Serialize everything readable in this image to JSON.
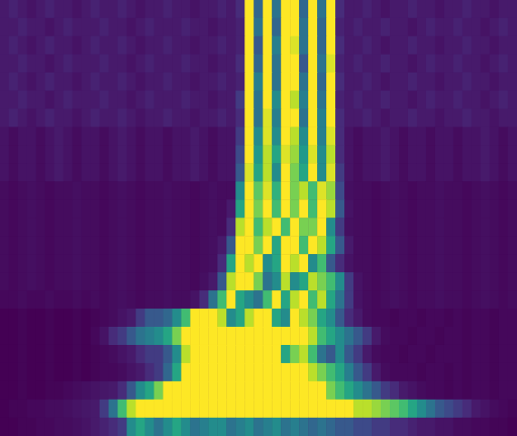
{
  "chart_data": {
    "type": "heatmap",
    "tick_labels": false,
    "z": [
      [
        0.1,
        0.12,
        0.1,
        0.08,
        0.1,
        0.12,
        0.1,
        0.1,
        0.08,
        0.1,
        0.12,
        0.1,
        0.1,
        0.12,
        0.1,
        0.08,
        0.1,
        0.1,
        0.12,
        0.1,
        0.1,
        0.08,
        0.1,
        0.1,
        0.12,
        0.1,
        0.15,
        1,
        0.35,
        1,
        0.4,
        1,
        1,
        0.35,
        1,
        0.4,
        1,
        0.15,
        0.1,
        0.1,
        0.12,
        0.1,
        0.08,
        0.1,
        0.1,
        0.12,
        0.1,
        0.1,
        0.08,
        0.1,
        0.1,
        0.12,
        0.1,
        0.1,
        0.08,
        0.1,
        0.1
      ],
      [
        0.1,
        0.1,
        0.12,
        0.1,
        0.1,
        0.08,
        0.1,
        0.12,
        0.1,
        0.1,
        0.1,
        0.12,
        0.1,
        0.1,
        0.08,
        0.1,
        0.12,
        0.1,
        0.1,
        0.1,
        0.12,
        0.1,
        0.1,
        0.08,
        0.1,
        0.1,
        0.12,
        1,
        0.4,
        1,
        0.35,
        1,
        1,
        0.4,
        1,
        0.35,
        1,
        0.12,
        0.1,
        0.12,
        0.1,
        0.1,
        0.12,
        0.1,
        0.1,
        0.08,
        0.1,
        0.12,
        0.1,
        0.1,
        0.12,
        0.1,
        0.1,
        0.08,
        0.1,
        0.12,
        0.1
      ],
      [
        0.1,
        0.12,
        0.1,
        0.08,
        0.1,
        0.12,
        0.1,
        0.1,
        0.08,
        0.1,
        0.12,
        0.1,
        0.1,
        0.12,
        0.1,
        0.08,
        0.1,
        0.1,
        0.12,
        0.1,
        0.1,
        0.08,
        0.1,
        0.1,
        0.12,
        0.1,
        0.12,
        1,
        0.3,
        1,
        0.45,
        1,
        0.95,
        0.4,
        1,
        0.35,
        1,
        0.15,
        0.1,
        0.1,
        0.12,
        0.1,
        0.08,
        0.1,
        0.1,
        0.12,
        0.1,
        0.1,
        0.08,
        0.1,
        0.1,
        0.12,
        0.1,
        0.1,
        0.08,
        0.1,
        0.1
      ],
      [
        0.1,
        0.1,
        0.12,
        0.1,
        0.1,
        0.08,
        0.1,
        0.12,
        0.1,
        0.1,
        0.1,
        0.12,
        0.1,
        0.1,
        0.08,
        0.1,
        0.12,
        0.1,
        0.1,
        0.1,
        0.12,
        0.1,
        0.1,
        0.08,
        0.1,
        0.1,
        0.15,
        1,
        0.35,
        1,
        0.4,
        1,
        1,
        0.3,
        1,
        0.4,
        0.95,
        0.12,
        0.1,
        0.12,
        0.1,
        0.1,
        0.12,
        0.1,
        0.1,
        0.08,
        0.1,
        0.12,
        0.1,
        0.1,
        0.12,
        0.1,
        0.1,
        0.08,
        0.1,
        0.12,
        0.1
      ],
      [
        0.1,
        0.12,
        0.1,
        0.08,
        0.1,
        0.12,
        0.1,
        0.1,
        0.08,
        0.1,
        0.12,
        0.1,
        0.1,
        0.12,
        0.1,
        0.08,
        0.1,
        0.1,
        0.12,
        0.1,
        0.1,
        0.08,
        0.1,
        0.1,
        0.12,
        0.1,
        0.12,
        1,
        0.45,
        1,
        0.4,
        1,
        1,
        0.4,
        1,
        0.35,
        1,
        0.15,
        0.1,
        0.1,
        0.12,
        0.1,
        0.08,
        0.1,
        0.1,
        0.12,
        0.1,
        0.1,
        0.08,
        0.1,
        0.1,
        0.12,
        0.1,
        0.1,
        0.08,
        0.1,
        0.1
      ],
      [
        0.1,
        0.1,
        0.12,
        0.1,
        0.1,
        0.08,
        0.1,
        0.12,
        0.1,
        0.1,
        0.1,
        0.12,
        0.1,
        0.1,
        0.08,
        0.1,
        0.12,
        0.1,
        0.1,
        0.1,
        0.12,
        0.1,
        0.1,
        0.08,
        0.1,
        0.1,
        0.2,
        1,
        0.4,
        1,
        0.5,
        1,
        0.9,
        0.45,
        1,
        0.4,
        1,
        0.12,
        0.1,
        0.12,
        0.1,
        0.1,
        0.12,
        0.1,
        0.1,
        0.08,
        0.1,
        0.12,
        0.1,
        0.1,
        0.12,
        0.1,
        0.1,
        0.08,
        0.1,
        0.12,
        0.1
      ],
      [
        0.1,
        0.12,
        0.1,
        0.08,
        0.1,
        0.12,
        0.1,
        0.1,
        0.08,
        0.1,
        0.12,
        0.1,
        0.1,
        0.12,
        0.1,
        0.08,
        0.1,
        0.1,
        0.12,
        0.1,
        0.1,
        0.08,
        0.1,
        0.1,
        0.12,
        0.1,
        0.15,
        1,
        0.4,
        0.95,
        0.45,
        1,
        1,
        0.4,
        1,
        0.45,
        1,
        0.15,
        0.1,
        0.1,
        0.12,
        0.1,
        0.08,
        0.1,
        0.1,
        0.12,
        0.1,
        0.1,
        0.08,
        0.1,
        0.1,
        0.12,
        0.1,
        0.1,
        0.08,
        0.1,
        0.1
      ],
      [
        0.08,
        0.06,
        0.08,
        0.08,
        0.06,
        0.08,
        0.1,
        0.08,
        0.06,
        0.08,
        0.08,
        0.06,
        0.08,
        0.1,
        0.08,
        0.06,
        0.08,
        0.08,
        0.06,
        0.08,
        0.08,
        0.1,
        0.08,
        0.06,
        0.08,
        0.08,
        0.2,
        1,
        0.5,
        0.95,
        0.5,
        1,
        0.9,
        0.5,
        1,
        0.45,
        0.95,
        0.15,
        0.08,
        0.06,
        0.08,
        0.08,
        0.1,
        0.08,
        0.06,
        0.08,
        0.08,
        0.06,
        0.08,
        0.08,
        0.06,
        0.08,
        0.08,
        0.1,
        0.08,
        0.06,
        0.08
      ],
      [
        0.08,
        0.06,
        0.08,
        0.08,
        0.06,
        0.08,
        0.1,
        0.08,
        0.06,
        0.08,
        0.08,
        0.06,
        0.08,
        0.1,
        0.08,
        0.06,
        0.08,
        0.08,
        0.06,
        0.08,
        0.08,
        0.1,
        0.08,
        0.06,
        0.08,
        0.08,
        0.25,
        1,
        0.55,
        0.9,
        0.6,
        0.95,
        0.85,
        0.55,
        0.95,
        0.5,
        0.9,
        0.15,
        0.08,
        0.06,
        0.08,
        0.08,
        0.1,
        0.08,
        0.06,
        0.08,
        0.08,
        0.06,
        0.08,
        0.08,
        0.06,
        0.08,
        0.08,
        0.1,
        0.08,
        0.06,
        0.08
      ],
      [
        0.08,
        0.06,
        0.08,
        0.08,
        0.06,
        0.08,
        0.1,
        0.08,
        0.06,
        0.08,
        0.08,
        0.06,
        0.08,
        0.1,
        0.08,
        0.06,
        0.08,
        0.08,
        0.06,
        0.08,
        0.08,
        0.1,
        0.08,
        0.06,
        0.08,
        0.08,
        0.3,
        0.95,
        0.6,
        0.9,
        0.5,
        1,
        0.8,
        0.6,
        1,
        0.5,
        0.95,
        0.2,
        0.08,
        0.06,
        0.08,
        0.08,
        0.1,
        0.08,
        0.06,
        0.08,
        0.08,
        0.06,
        0.08,
        0.08,
        0.06,
        0.08,
        0.08,
        0.1,
        0.08,
        0.06,
        0.08
      ],
      [
        0.06,
        0.05,
        0.06,
        0.07,
        0.06,
        0.05,
        0.06,
        0.06,
        0.07,
        0.06,
        0.06,
        0.05,
        0.06,
        0.07,
        0.06,
        0.05,
        0.06,
        0.06,
        0.07,
        0.06,
        0.06,
        0.05,
        0.06,
        0.07,
        0.06,
        0.06,
        0.5,
        1,
        0.75,
        0.95,
        0.65,
        1,
        0.8,
        0.9,
        0.7,
        0.95,
        0.85,
        0.25,
        0.07,
        0.06,
        0.06,
        0.05,
        0.06,
        0.07,
        0.06,
        0.05,
        0.06,
        0.06,
        0.07,
        0.06,
        0.06,
        0.05,
        0.06,
        0.07,
        0.06,
        0.05,
        0.06
      ],
      [
        0.06,
        0.05,
        0.06,
        0.07,
        0.06,
        0.05,
        0.06,
        0.06,
        0.07,
        0.06,
        0.06,
        0.05,
        0.06,
        0.07,
        0.06,
        0.05,
        0.06,
        0.06,
        0.07,
        0.06,
        0.06,
        0.05,
        0.06,
        0.07,
        0.06,
        0.1,
        0.6,
        1,
        0.8,
        1,
        0.7,
        1,
        0.8,
        1,
        0.7,
        1,
        0.9,
        0.3,
        0.08,
        0.06,
        0.06,
        0.05,
        0.06,
        0.07,
        0.06,
        0.05,
        0.06,
        0.06,
        0.07,
        0.06,
        0.06,
        0.05,
        0.06,
        0.07,
        0.06,
        0.05,
        0.06
      ],
      [
        0.06,
        0.05,
        0.06,
        0.07,
        0.06,
        0.05,
        0.06,
        0.06,
        0.07,
        0.06,
        0.06,
        0.05,
        0.06,
        0.07,
        0.06,
        0.05,
        0.06,
        0.06,
        0.07,
        0.06,
        0.06,
        0.05,
        0.06,
        0.07,
        0.06,
        0.15,
        0.9,
        1,
        0.7,
        0.9,
        1,
        0.7,
        1,
        0.8,
        0.8,
        1,
        0.5,
        0.2,
        0.07,
        0.06,
        0.06,
        0.05,
        0.06,
        0.07,
        0.06,
        0.05,
        0.06,
        0.06,
        0.07,
        0.06,
        0.06,
        0.05,
        0.06,
        0.07,
        0.06,
        0.05,
        0.06
      ],
      [
        0.06,
        0.05,
        0.06,
        0.07,
        0.06,
        0.05,
        0.06,
        0.06,
        0.07,
        0.06,
        0.06,
        0.05,
        0.06,
        0.07,
        0.06,
        0.05,
        0.06,
        0.06,
        0.07,
        0.06,
        0.06,
        0.05,
        0.06,
        0.07,
        0.1,
        0.3,
        1,
        1,
        0.8,
        1,
        0.6,
        1,
        1,
        0.7,
        1,
        0.9,
        0.6,
        0.3,
        0.1,
        0.06,
        0.06,
        0.05,
        0.06,
        0.07,
        0.06,
        0.05,
        0.06,
        0.06,
        0.07,
        0.06,
        0.06,
        0.05,
        0.06,
        0.07,
        0.06,
        0.05,
        0.06
      ],
      [
        0.06,
        0.05,
        0.06,
        0.07,
        0.06,
        0.05,
        0.06,
        0.06,
        0.07,
        0.06,
        0.06,
        0.05,
        0.06,
        0.07,
        0.06,
        0.05,
        0.06,
        0.06,
        0.07,
        0.06,
        0.06,
        0.05,
        0.06,
        0.07,
        0.15,
        0.6,
        1,
        0.9,
        1,
        0.5,
        0.6,
        1,
        0.9,
        1,
        0.5,
        0.7,
        0.3,
        0.15,
        0.08,
        0.06,
        0.06,
        0.05,
        0.06,
        0.07,
        0.06,
        0.05,
        0.06,
        0.06,
        0.07,
        0.06,
        0.06,
        0.05,
        0.06,
        0.07,
        0.06,
        0.05,
        0.06
      ],
      [
        0.06,
        0.05,
        0.06,
        0.07,
        0.06,
        0.05,
        0.06,
        0.06,
        0.07,
        0.06,
        0.06,
        0.05,
        0.06,
        0.07,
        0.06,
        0.05,
        0.06,
        0.06,
        0.07,
        0.06,
        0.06,
        0.05,
        0.07,
        0.1,
        0.3,
        0.9,
        1,
        1,
        0.8,
        0.4,
        0.5,
        0.9,
        0.5,
        0.6,
        0.9,
        0.8,
        0.7,
        0.5,
        0.2,
        0.08,
        0.06,
        0.05,
        0.06,
        0.07,
        0.06,
        0.05,
        0.06,
        0.06,
        0.07,
        0.06,
        0.06,
        0.05,
        0.06,
        0.07,
        0.06,
        0.05,
        0.06
      ],
      [
        0.05,
        0.05,
        0.06,
        0.05,
        0.05,
        0.06,
        0.05,
        0.05,
        0.06,
        0.05,
        0.06,
        0.05,
        0.06,
        0.07,
        0.06,
        0.05,
        0.06,
        0.06,
        0.07,
        0.06,
        0.06,
        0.08,
        0.15,
        0.4,
        0.7,
        1,
        0.6,
        0.5,
        0.4,
        0.7,
        1,
        0.6,
        0.9,
        1,
        0.7,
        0.9,
        0.6,
        0.4,
        0.2,
        0.08,
        0.06,
        0.05,
        0.06,
        0.07,
        0.06,
        0.05,
        0.06,
        0.06,
        0.07,
        0.06,
        0.06,
        0.05,
        0.06,
        0.07,
        0.06,
        0.05,
        0.06
      ],
      [
        0.03,
        0.03,
        0.04,
        0.03,
        0.03,
        0.04,
        0.03,
        0.03,
        0.04,
        0.03,
        0.04,
        0.05,
        0.06,
        0.08,
        0.1,
        0.2,
        0.3,
        0.3,
        0.35,
        0.5,
        0.7,
        1,
        1,
        1,
        0.9,
        0.5,
        0.6,
        0.9,
        1,
        1,
        0.6,
        0.5,
        1,
        0.9,
        0.8,
        0.6,
        0.5,
        0.3,
        0.15,
        0.1,
        0.06,
        0.05,
        0.05,
        0.04,
        0.05,
        0.05,
        0.04,
        0.05,
        0.05,
        0.04,
        0.05,
        0.04,
        0.05,
        0.05,
        0.04,
        0.05,
        0.05
      ],
      [
        0.03,
        0.03,
        0.04,
        0.03,
        0.03,
        0.04,
        0.03,
        0.03,
        0.04,
        0.03,
        0.05,
        0.08,
        0.15,
        0.2,
        0.3,
        0.4,
        0.45,
        0.5,
        0.6,
        0.8,
        1,
        1,
        1,
        1,
        1,
        1,
        1,
        1,
        1,
        1,
        1,
        1,
        1,
        1,
        0.9,
        0.7,
        0.6,
        0.5,
        0.4,
        0.3,
        0.2,
        0.1,
        0.06,
        0.05,
        0.05,
        0.04,
        0.05,
        0.05,
        0.04,
        0.05,
        0.05,
        0.04,
        0.05,
        0.05,
        0.04,
        0.05,
        0.05
      ],
      [
        0.03,
        0.03,
        0.04,
        0.03,
        0.03,
        0.04,
        0.03,
        0.03,
        0.04,
        0.03,
        0.04,
        0.05,
        0.06,
        0.08,
        0.1,
        0.15,
        0.2,
        0.2,
        0.3,
        0.5,
        0.9,
        1,
        1,
        1,
        1,
        1,
        1,
        1,
        1,
        1,
        1,
        0.6,
        0.8,
        0.9,
        0.7,
        0.4,
        0.3,
        0.5,
        0.3,
        0.2,
        0.1,
        0.06,
        0.05,
        0.05,
        0.04,
        0.05,
        0.05,
        0.04,
        0.05,
        0.05,
        0.05,
        0.04,
        0.05,
        0.05,
        0.04,
        0.05,
        0.05
      ],
      [
        0.03,
        0.03,
        0.04,
        0.03,
        0.03,
        0.04,
        0.03,
        0.03,
        0.04,
        0.03,
        0.04,
        0.05,
        0.05,
        0.06,
        0.08,
        0.1,
        0.15,
        0.2,
        0.35,
        0.6,
        1,
        1,
        1,
        1,
        1,
        1,
        1,
        1,
        1,
        1,
        1,
        1,
        1,
        1,
        0.9,
        0.8,
        0.7,
        0.6,
        0.45,
        0.3,
        0.2,
        0.1,
        0.06,
        0.05,
        0.05,
        0.05,
        0.04,
        0.05,
        0.05,
        0.04,
        0.05,
        0.04,
        0.05,
        0.05,
        0.04,
        0.05,
        0.05
      ],
      [
        0.03,
        0.03,
        0.04,
        0.03,
        0.03,
        0.04,
        0.04,
        0.05,
        0.06,
        0.07,
        0.08,
        0.09,
        0.1,
        0.15,
        0.3,
        0.5,
        0.6,
        0.8,
        1,
        1,
        1,
        1,
        1,
        1,
        1,
        1,
        1,
        1,
        1,
        1,
        1,
        1,
        1,
        1,
        1,
        1,
        0.8,
        0.7,
        0.6,
        0.5,
        0.4,
        0.3,
        0.2,
        0.15,
        0.1,
        0.08,
        0.06,
        0.05,
        0.05,
        0.04,
        0.05,
        0.04,
        0.05,
        0.05,
        0.04,
        0.05,
        0.05
      ],
      [
        0.03,
        0.04,
        0.04,
        0.05,
        0.05,
        0.06,
        0.06,
        0.07,
        0.08,
        0.09,
        0.1,
        0.2,
        0.4,
        0.7,
        0.9,
        1,
        1,
        1,
        1,
        1,
        1,
        1,
        1,
        1,
        1,
        1,
        1,
        1,
        1,
        1,
        1,
        1,
        1,
        1,
        1,
        1,
        1,
        1,
        1,
        0.9,
        0.9,
        0.85,
        0.8,
        0.75,
        0.7,
        0.6,
        0.5,
        0.4,
        0.3,
        0.25,
        0.2,
        0.15,
        0.1,
        0.08,
        0.06,
        0.05,
        0.04
      ],
      [
        0.03,
        0.03,
        0.04,
        0.04,
        0.05,
        0.05,
        0.06,
        0.06,
        0.07,
        0.08,
        0.1,
        0.12,
        0.15,
        0.2,
        0.5,
        0.6,
        0.5,
        0.4,
        0.5,
        0.6,
        0.5,
        0.4,
        0.45,
        0.5,
        0.5,
        0.4,
        0.45,
        0.5,
        0.4,
        0.45,
        0.5,
        0.4,
        0.45,
        0.4,
        0.35,
        0.4,
        0.35,
        0.3,
        0.3,
        0.25,
        0.25,
        0.2,
        0.2,
        0.15,
        0.15,
        0.12,
        0.1,
        0.1,
        0.08,
        0.08,
        0.06,
        0.06,
        0.05,
        0.05,
        0.04,
        0.04,
        0.03
      ]
    ]
  }
}
